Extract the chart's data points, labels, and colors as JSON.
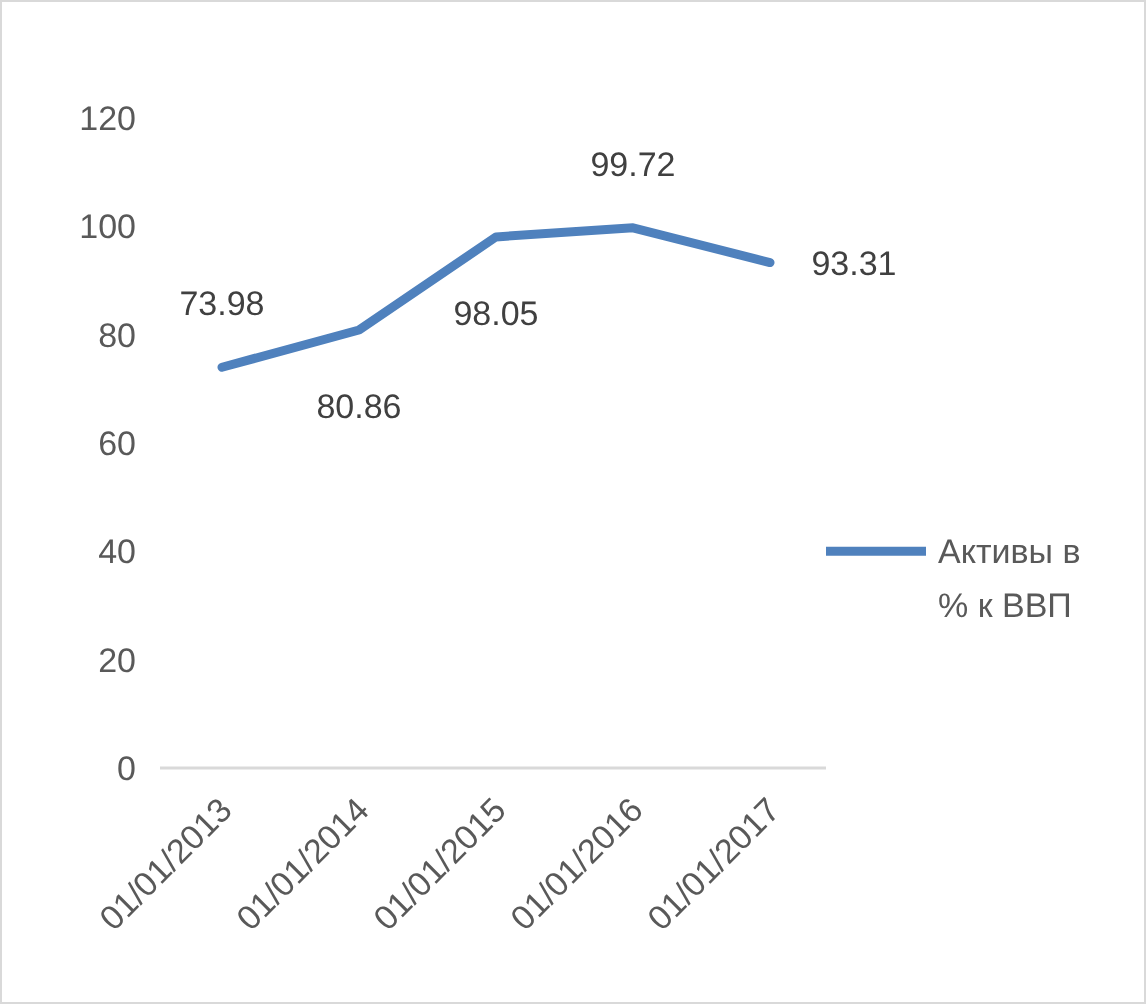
{
  "chart_data": {
    "type": "line",
    "categories": [
      "01/01/2013",
      "01/01/2014",
      "01/01/2015",
      "01/01/2016",
      "01/01/2017"
    ],
    "series": [
      {
        "name": "Активы в % к ВВП",
        "color": "#4f81bd",
        "values": [
          73.98,
          80.86,
          98.05,
          99.72,
          93.31
        ]
      }
    ],
    "ylim": [
      0,
      120
    ],
    "yticks": [
      0,
      20,
      40,
      60,
      80,
      100,
      120
    ],
    "grid": false,
    "legend": "right",
    "data_labels": true,
    "marker": "none",
    "line_style": "solid"
  }
}
